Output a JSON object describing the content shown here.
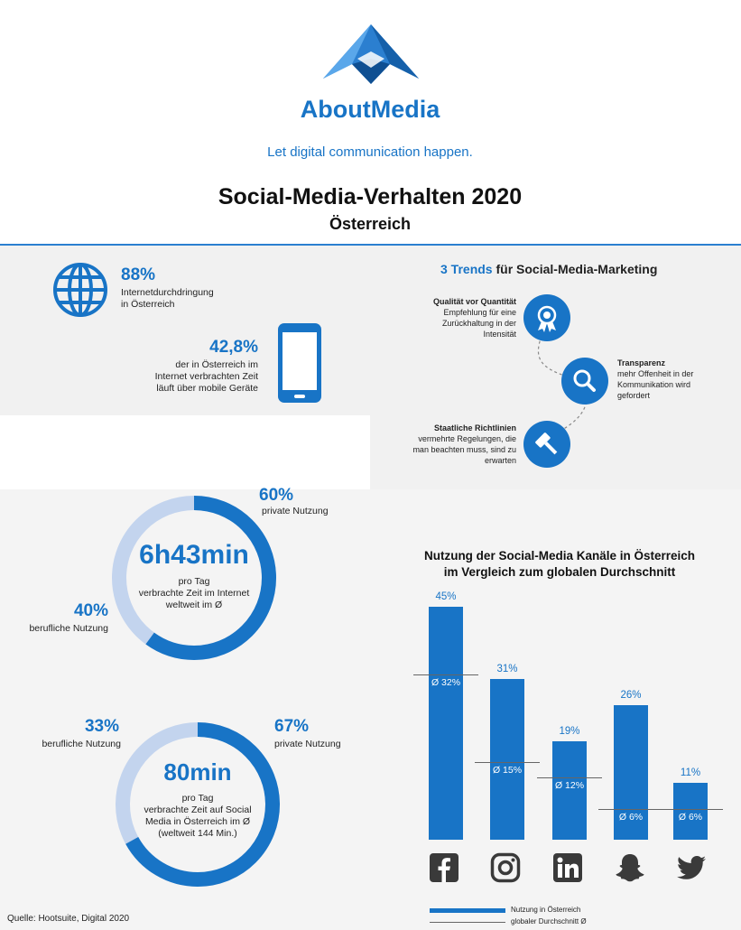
{
  "brand": {
    "name": "AboutMedia",
    "tagline": "Let digital communication happen."
  },
  "header": {
    "title": "Social-Media-Verhalten 2020",
    "subtitle": "Österreich"
  },
  "stats": {
    "internet": {
      "value": "88%",
      "label_line1": "Internetdurchdringung",
      "label_line2": "in Österreich"
    },
    "mobile": {
      "value": "42,8%",
      "label_line1": "der in Österreich im",
      "label_line2": "Internet verbrachten Zeit",
      "label_line3": "läuft über mobile Geräte"
    }
  },
  "trends": {
    "title_prefix": "3 Trends",
    "title_suffix": " für Social-Media-Marketing",
    "items": [
      {
        "title": "Qualität vor Quantität",
        "line1": "Empfehlung für eine",
        "line2": "Zurückhaltung in der",
        "line3": "Intensität",
        "icon": "award-icon"
      },
      {
        "title": "Transparenz",
        "line1": "mehr Offenheit in der",
        "line2": "Kommunikation wird",
        "line3": "gefordert",
        "icon": "search-icon"
      },
      {
        "title": "Staatliche Richtlinien",
        "line1": "vermehrte Regelungen, die",
        "line2": "man beachten muss, sind zu",
        "line3": "erwarten",
        "icon": "gavel-icon"
      }
    ]
  },
  "donut_internet": {
    "value": "6h43min",
    "line1": "pro Tag",
    "line2": "verbrachte Zeit im Internet",
    "line3": "weltweit im Ø",
    "private_pct": "60%",
    "private_label": "private Nutzung",
    "business_pct": "40%",
    "business_label": "berufliche Nutzung",
    "private_fraction": 0.6,
    "colors": {
      "private": "#1874c6",
      "business": "#c3d4ee"
    }
  },
  "donut_social": {
    "value": "80min",
    "line1": "pro Tag",
    "line2": "verbrachte Zeit auf Social",
    "line3": "Media in Österreich im Ø",
    "line4": "(weltweit 144 Min.)",
    "private_pct": "67%",
    "private_label": "private Nutzung",
    "business_pct": "33%",
    "business_label": "berufliche Nutzung",
    "private_fraction": 0.67,
    "colors": {
      "private": "#1874c6",
      "business": "#c3d4ee"
    }
  },
  "chart_data": {
    "type": "bar",
    "title_line1": "Nutzung der Social-Media Kanäle in Österreich",
    "title_line2": "im Vergleich zum globalen Durchschnitt",
    "categories": [
      "facebook-icon",
      "instagram-icon",
      "linkedin-icon",
      "snapchat-icon",
      "twitter-icon"
    ],
    "values": [
      45,
      31,
      19,
      26,
      11
    ],
    "value_labels": [
      "45%",
      "31%",
      "19%",
      "26%",
      "11%"
    ],
    "global_avg": [
      32,
      15,
      12,
      6,
      6
    ],
    "global_avg_labels": [
      "Ø 32%",
      "Ø 15%",
      "Ø 12%",
      "Ø 6%",
      "Ø 6%"
    ],
    "ylim": [
      0,
      45
    ],
    "legend": {
      "austria": "Nutzung in Österreich",
      "global": "globaler Durchschnitt Ø",
      "placement": "bottom"
    },
    "colors": {
      "bar": "#1874c6",
      "avg": "#666666"
    }
  },
  "footer": {
    "source": "Quelle: Hootsuite, Digital 2020"
  }
}
